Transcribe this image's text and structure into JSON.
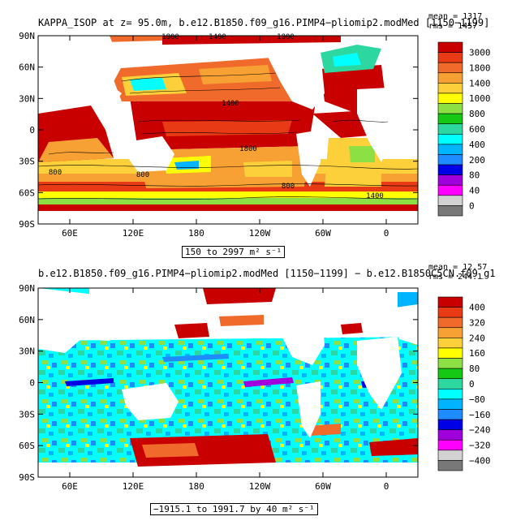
{
  "chart_data": [
    {
      "type": "heatmap",
      "title": "KAPPA_ISOP at z=  95.0m, b.e12.B1850.f09_g16.PIMP4−pliomip2.modMed [1150−1199]",
      "stats": {
        "mean": "mean = 1317",
        "rms": "rms = 1457"
      },
      "x_ticks": [
        "60E",
        "120E",
        "180",
        "120W",
        "60W",
        "0"
      ],
      "y_ticks": [
        "90N",
        "60N",
        "30N",
        "0",
        "30S",
        "60S",
        "90S"
      ],
      "colorbar": {
        "labels": [
          "3000",
          "1800",
          "1400",
          "1000",
          "800",
          "600",
          "400",
          "200",
          "80",
          "40",
          "0"
        ],
        "colors": [
          "#c80000",
          "#e83a14",
          "#f06a2c",
          "#f7a033",
          "#fcd03a",
          "#ffff00",
          "#8ce043",
          "#14c814",
          "#2cd8a0",
          "#00ffff",
          "#00b4ff",
          "#1e8cff",
          "#0000e6",
          "#a000dc",
          "#ff00ff",
          "#d2d2d2",
          "#787878"
        ]
      },
      "range_label": "150 to 2997 m² s⁻¹",
      "contour_labels": [
        "1800",
        "1400",
        "1800",
        "1400",
        "1800",
        "800",
        "800",
        "800",
        "1400"
      ]
    },
    {
      "type": "heatmap",
      "title": "b.e12.B1850.f09_g16.PIMP4−pliomip2.modMed [1150−1199] − b.e12.B1850C5CN.f09_g1",
      "stats": {
        "mean": "mean = 12.57",
        "rms": "rms = 244.1"
      },
      "x_ticks": [
        "60E",
        "120E",
        "180",
        "120W",
        "60W",
        "0"
      ],
      "y_ticks": [
        "90N",
        "60N",
        "30N",
        "0",
        "30S",
        "60S",
        "90S"
      ],
      "colorbar": {
        "labels": [
          "400",
          "320",
          "240",
          "160",
          "80",
          "0",
          "−80",
          "−160",
          "−240",
          "−320",
          "−400"
        ],
        "colors": [
          "#c80000",
          "#e83a14",
          "#f06a2c",
          "#f7a033",
          "#fcd03a",
          "#ffff00",
          "#8ce043",
          "#14c814",
          "#2cd8a0",
          "#00ffff",
          "#00b4ff",
          "#1e8cff",
          "#0000e6",
          "#a000dc",
          "#ff00ff",
          "#d2d2d2",
          "#787878"
        ]
      },
      "range_label": "−1915.1 to 1991.7 by 40 m² s⁻¹"
    }
  ]
}
